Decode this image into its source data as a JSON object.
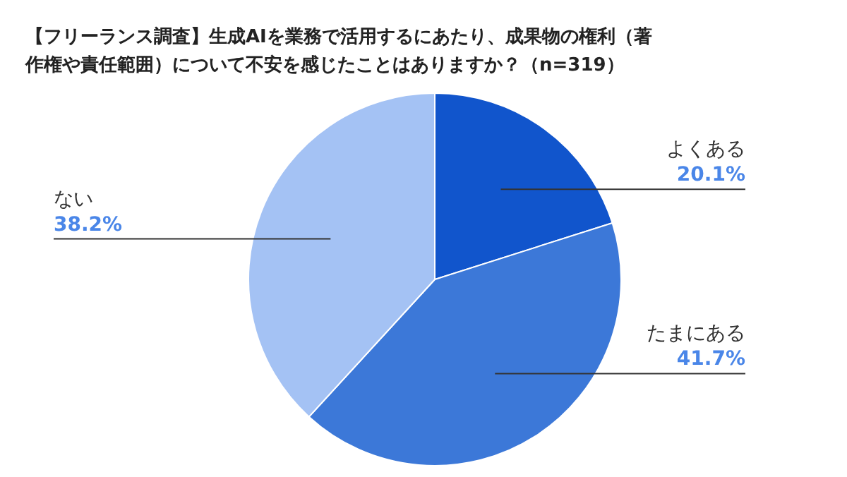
{
  "chart_data": {
    "type": "pie",
    "title": "【フリーランス調査】生成AIを業務で活用するにあたり、成果物の権利（著作権や責任範囲）について不安を感じたことはありますか？（n=319）",
    "categories": [
      "よくある",
      "たまにある",
      "ない"
    ],
    "values": [
      20.1,
      41.7,
      38.2
    ],
    "colors": [
      "#1155cc",
      "#3c78d8",
      "#a4c2f4"
    ],
    "value_labels": [
      "20.1%",
      "41.7%",
      "38.2%"
    ]
  }
}
